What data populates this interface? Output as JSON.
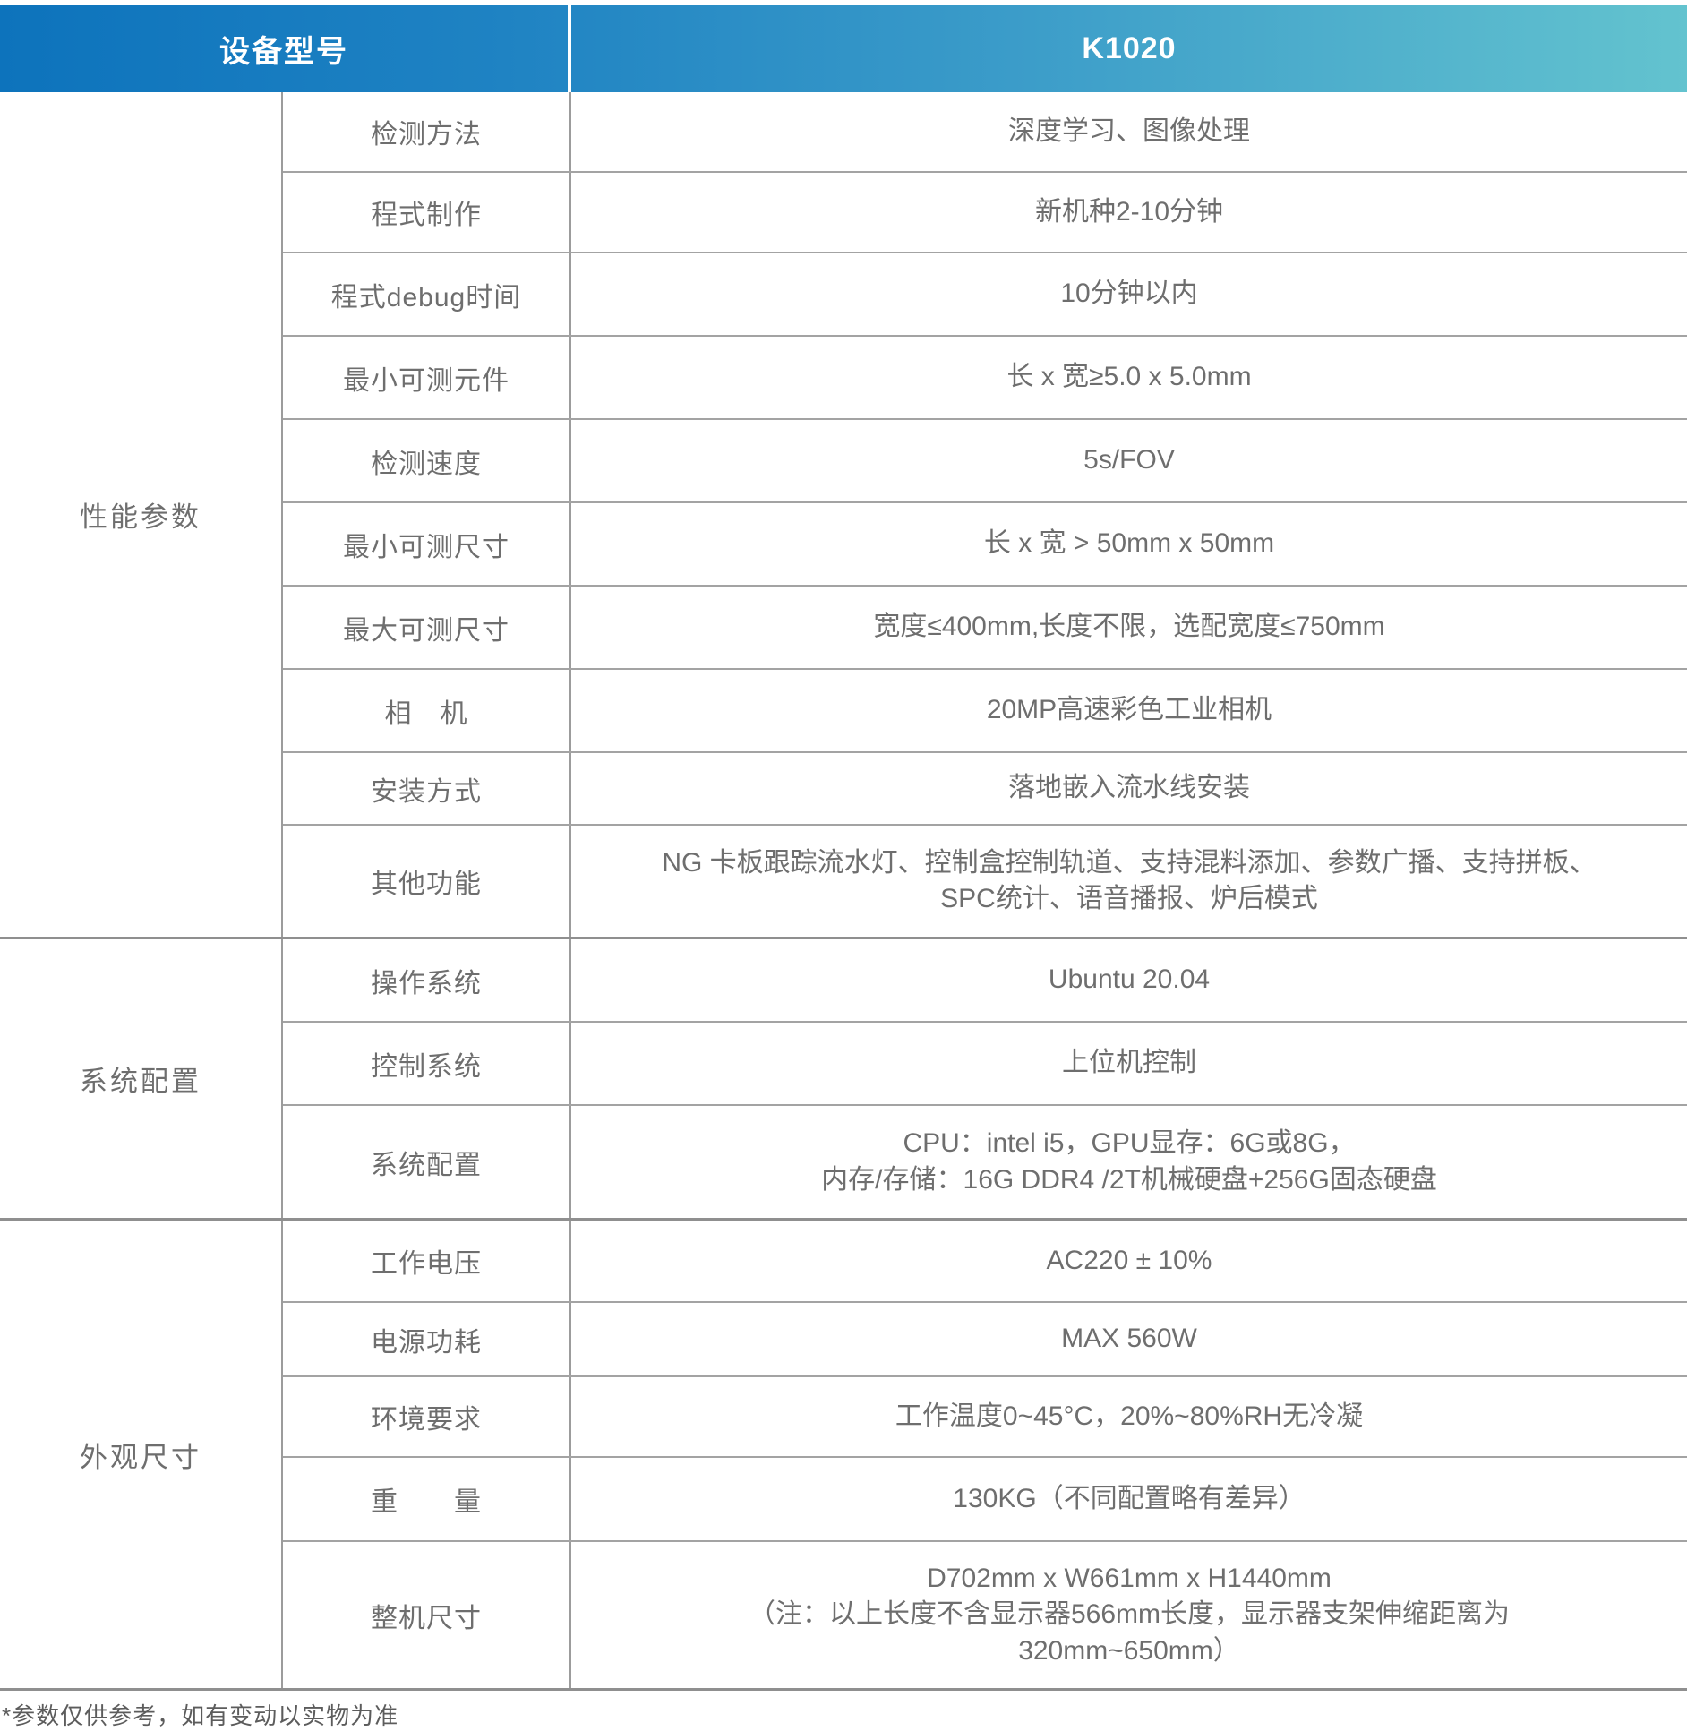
{
  "header": {
    "device_model_label": "设备型号",
    "model_value": "K1020"
  },
  "colors": {
    "header_gradient_start": "#0d73bc",
    "header_gradient_end": "#63c3cf",
    "header_text": "#ffffff",
    "body_text": "#6e6e6e",
    "grid_line": "#9c9c9c",
    "group_line": "#8f8f8f"
  },
  "groups": [
    {
      "label": "性能参数",
      "rows": [
        {
          "param": "检测方法",
          "value": "深度学习、图像处理"
        },
        {
          "param": "程式制作",
          "value": "新机种2-10分钟"
        },
        {
          "param": "程式debug时间",
          "value": "10分钟以内"
        },
        {
          "param": "最小可测元件",
          "value": "长 x 宽≥5.0 x 5.0mm"
        },
        {
          "param": "检测速度",
          "value": "5s/FOV"
        },
        {
          "param": "最小可测尺寸",
          "value": "长 x 宽 > 50mm x 50mm"
        },
        {
          "param": "最大可测尺寸",
          "value": "宽度≤400mm,长度不限，选配宽度≤750mm"
        },
        {
          "param": "相　机",
          "value": "20MP高速彩色工业相机"
        },
        {
          "param": "安装方式",
          "value": "落地嵌入流水线安装"
        },
        {
          "param": "其他功能",
          "value": "NG 卡板跟踪流水灯、控制盒控制轨道、支持混料添加、参数广播、支持拼板、\nSPC统计、语音播报、炉后模式"
        }
      ]
    },
    {
      "label": "系统配置",
      "rows": [
        {
          "param": "操作系统",
          "value": "Ubuntu 20.04"
        },
        {
          "param": "控制系统",
          "value": "上位机控制"
        },
        {
          "param": "系统配置",
          "value": "CPU：intel i5，GPU显存：6G或8G，\n内存/存储：16G DDR4 /2T机械硬盘+256G固态硬盘"
        }
      ]
    },
    {
      "label": "外观尺寸",
      "rows": [
        {
          "param": "工作电压",
          "value": "AC220 ± 10%"
        },
        {
          "param": "电源功耗",
          "value": "MAX 560W"
        },
        {
          "param": "环境要求",
          "value": "工作温度0~45°C，20%~80%RH无冷凝"
        },
        {
          "param": "重　　量",
          "value": "130KG（不同配置略有差异）"
        },
        {
          "param": "整机尺寸",
          "value": "D702mm x W661mm x H1440mm\n（注：以上长度不含显示器566mm长度，显示器支架伸缩距离为\n320mm~650mm）"
        }
      ]
    }
  ],
  "footnote": "*参数仅供参考，如有变动以实物为准"
}
